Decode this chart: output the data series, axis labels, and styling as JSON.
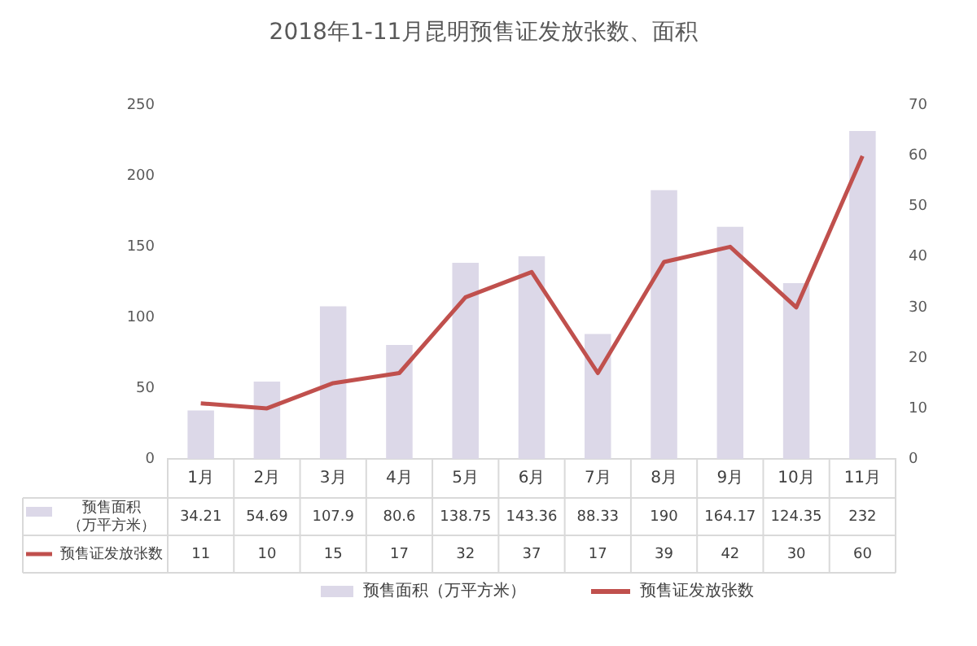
{
  "chart_data": {
    "type": "bar",
    "title": "2018年1-11月昆明预售证发放张数、面积",
    "categories": [
      "1月",
      "2月",
      "3月",
      "4月",
      "5月",
      "6月",
      "7月",
      "8月",
      "9月",
      "10月",
      "11月"
    ],
    "series": [
      {
        "name": "预售面积（万平方米）",
        "color": "#dcd8e8",
        "values": [
          34.21,
          54.69,
          107.9,
          80.6,
          138.75,
          143.36,
          88.33,
          190,
          164.17,
          124.35,
          232
        ]
      },
      {
        "name": "预售证发放张数",
        "type": "line",
        "axis": "y2",
        "color": "#c0504d",
        "values": [
          11,
          10,
          15,
          17,
          32,
          37,
          17,
          39,
          42,
          30,
          60
        ]
      }
    ],
    "ylim": [
      0,
      250
    ],
    "yticks": [
      0,
      50,
      100,
      150,
      200,
      250
    ],
    "y2lim": [
      0,
      70
    ],
    "y2ticks": [
      0,
      10,
      20,
      30,
      40,
      50,
      60,
      70
    ],
    "grid": false,
    "legend": "bottom",
    "marker": "none",
    "line_style": "solid",
    "data_labels": true
  }
}
